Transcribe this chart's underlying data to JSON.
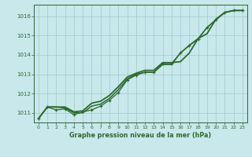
{
  "background_color": "#c8e8ec",
  "grid_color": "#a0c8cc",
  "line_color": "#2d6a2d",
  "xlabel": "Graphe pression niveau de la mer (hPa)",
  "ylim": [
    1010.5,
    1016.6
  ],
  "xlim": [
    -0.5,
    23.5
  ],
  "yticks": [
    1011,
    1012,
    1013,
    1014,
    1015,
    1016
  ],
  "xticks": [
    0,
    1,
    2,
    3,
    4,
    5,
    6,
    7,
    8,
    9,
    10,
    11,
    12,
    13,
    14,
    15,
    16,
    17,
    18,
    19,
    20,
    21,
    22,
    23
  ],
  "hours": [
    0,
    1,
    2,
    3,
    4,
    5,
    6,
    7,
    8,
    9,
    10,
    11,
    12,
    13,
    14,
    15,
    16,
    17,
    18,
    19,
    20,
    21,
    22,
    23
  ],
  "line_top": [
    1010.7,
    1011.3,
    1011.3,
    1011.3,
    1011.05,
    1011.1,
    1011.5,
    1011.6,
    1011.9,
    1012.35,
    1012.85,
    1013.05,
    1013.2,
    1013.2,
    1013.6,
    1013.6,
    1013.65,
    1014.1,
    1014.85,
    1015.1,
    1015.85,
    1016.2,
    1016.3,
    1016.3
  ],
  "line_mid": [
    1010.7,
    1011.3,
    1011.3,
    1011.25,
    1011.0,
    1011.0,
    1011.35,
    1011.45,
    1011.75,
    1012.2,
    1012.75,
    1013.0,
    1013.1,
    1013.1,
    1013.5,
    1013.5,
    1014.1,
    1014.5,
    1014.85,
    1015.42,
    1015.82,
    1016.2,
    1016.3,
    1016.3
  ],
  "line_markers": [
    1010.7,
    1011.3,
    1011.15,
    1011.2,
    1010.9,
    1011.05,
    1011.15,
    1011.35,
    1011.65,
    1012.05,
    1012.7,
    1012.95,
    1013.1,
    1013.1,
    1013.55,
    1013.55,
    1014.1,
    1014.48,
    1014.82,
    1015.42,
    1015.82,
    1016.2,
    1016.3,
    1016.3
  ]
}
